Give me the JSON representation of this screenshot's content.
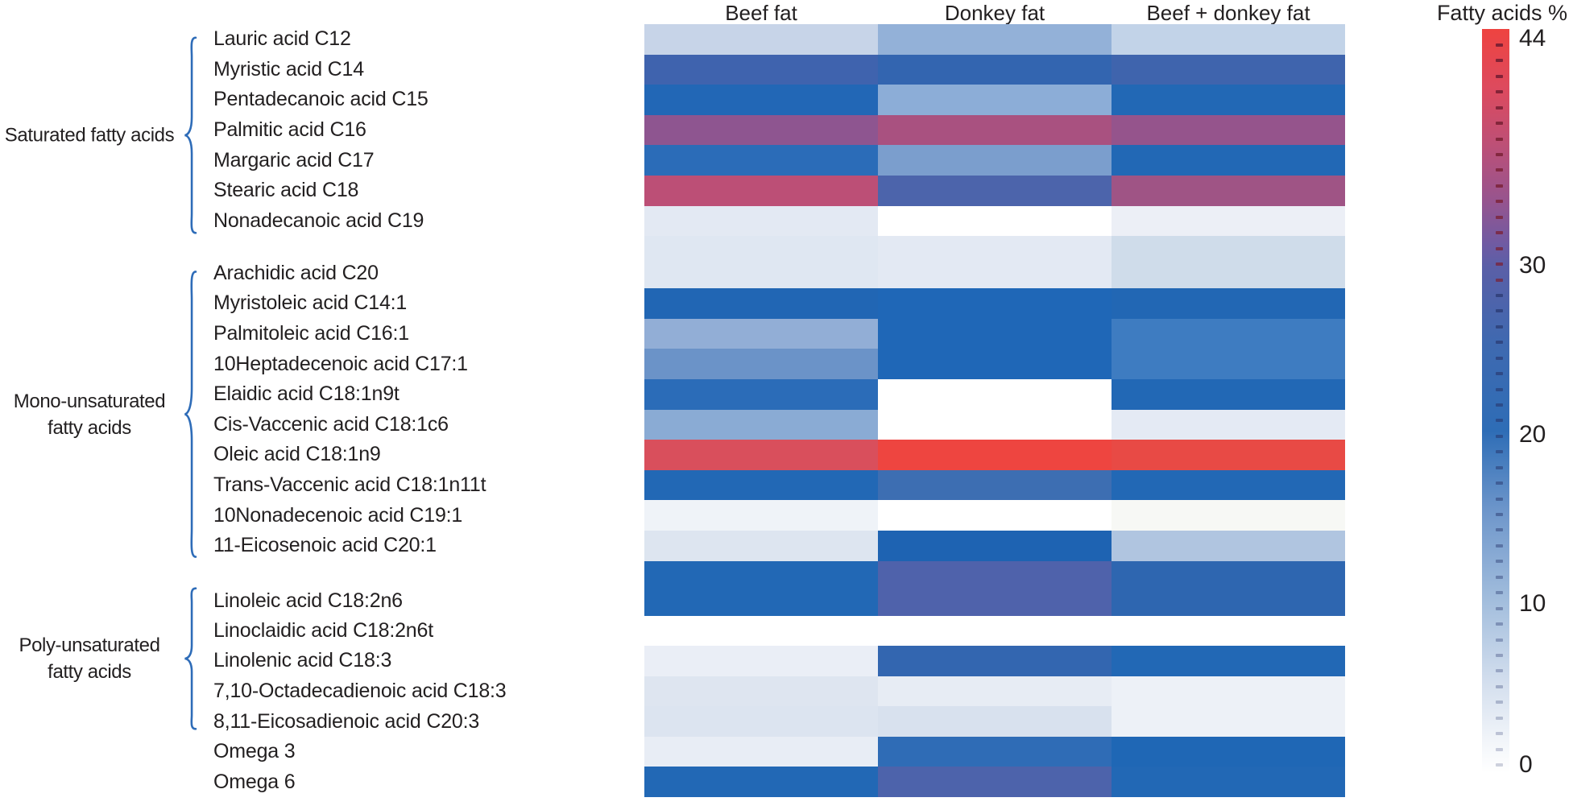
{
  "columns": [
    "Beef fat",
    "Donkey fat",
    "Beef + donkey fat"
  ],
  "colorbar": {
    "title": "Fatty acids %",
    "ticks": [
      "44",
      "30",
      "20",
      "10",
      "0"
    ],
    "tick_values": [
      44,
      30,
      20,
      10,
      0
    ],
    "min": 0,
    "max": 44,
    "top_color": "#ee4340",
    "mid_color": "#2e6db6",
    "bottom_color": "#ffffff"
  },
  "groups": [
    {
      "id": "saturated",
      "lines": [
        "Saturated fatty acids"
      ]
    },
    {
      "id": "mono",
      "lines": [
        "Mono-unsaturated",
        "fatty acids"
      ]
    },
    {
      "id": "poly",
      "lines": [
        "Poly-unsaturated",
        "fatty acids"
      ]
    }
  ],
  "rows": [
    {
      "label": "Lauric acid C12",
      "group": "saturated",
      "colors": [
        "#c7d4e8",
        "#93b1d8",
        "#c2d3e8"
      ],
      "values": [
        6,
        12,
        6
      ]
    },
    {
      "label": "Myristic acid C14",
      "group": "saturated",
      "colors": [
        "#3f63ae",
        "#3365b0",
        "#3f64ad"
      ],
      "values": [
        27,
        25,
        26
      ]
    },
    {
      "label": "Pentadecanoic acid C15",
      "group": "saturated",
      "colors": [
        "#2267b6",
        "#8cadd7",
        "#2268b5"
      ],
      "values": [
        21,
        13,
        21
      ]
    },
    {
      "label": "Palmitic acid C16",
      "group": "saturated",
      "colors": [
        "#8e5590",
        "#a95180",
        "#95548c"
      ],
      "values": [
        36,
        39,
        37
      ]
    },
    {
      "label": "Margaric acid C17",
      "group": "saturated",
      "colors": [
        "#2b6cb8",
        "#7b9ecd",
        "#2268b5"
      ],
      "values": [
        21,
        14,
        21
      ]
    },
    {
      "label": "Stearic acid C18",
      "group": "saturated",
      "colors": [
        "#bc4f76",
        "#4c64ab",
        "#9f5485"
      ],
      "values": [
        40,
        29,
        38
      ]
    },
    {
      "label": "Nonadecanoic acid C19",
      "group": "saturated",
      "colors": [
        "#e3e9f3",
        "#ffffff",
        "#eceff6"
      ],
      "values": [
        2,
        0,
        1
      ]
    },
    {
      "label": "Arachidic acid C20",
      "group": "mono",
      "colors": [
        "#dfe7f2",
        "#e3e9f3",
        "#cfdcea"
      ],
      "values": [
        2,
        2,
        5
      ]
    },
    {
      "label": "Myristoleic acid C14:1",
      "group": "mono",
      "colors": [
        "#2166b4",
        "#1f67b7",
        "#2267b4"
      ],
      "values": [
        22,
        22,
        22
      ]
    },
    {
      "label": "Palmitoleic acid C16:1",
      "group": "mono",
      "colors": [
        "#92aed6",
        "#1f67b7",
        "#3e7cc1"
      ],
      "values": [
        12,
        22,
        19
      ]
    },
    {
      "label": "10Heptadecenoic acid C17:1",
      "group": "mono",
      "colors": [
        "#6b93c8",
        "#1f67b7",
        "#3e7cc1"
      ],
      "values": [
        16,
        22,
        19
      ]
    },
    {
      "label": "Elaidic acid C18:1n9t",
      "group": "mono",
      "colors": [
        "#2b6cb8",
        "#ffffff",
        "#2268b5"
      ],
      "values": [
        21,
        0,
        21
      ]
    },
    {
      "label": "Cis-Vaccenic acid C18:1c6",
      "group": "mono",
      "colors": [
        "#8aabd4",
        "#ffffff",
        "#e4eaf4"
      ],
      "values": [
        13,
        0,
        2
      ]
    },
    {
      "label": "Oleic acid C18:1n9",
      "group": "mono",
      "colors": [
        "#d94f5c",
        "#ee4540",
        "#e84a45"
      ],
      "values": [
        42,
        44,
        43
      ]
    },
    {
      "label": "Trans-Vaccenic acid C18:1n11t",
      "group": "mono",
      "colors": [
        "#2268b5",
        "#3d6eb2",
        "#2268b5"
      ],
      "values": [
        21,
        24,
        21
      ]
    },
    {
      "label": "10Nonadecenoic acid C19:1",
      "group": "mono",
      "colors": [
        "#eff3f8",
        "#ffffff",
        "#f7f8f5"
      ],
      "values": [
        1,
        0,
        0
      ]
    },
    {
      "label": "11-Eicosenoic acid C20:1",
      "group": "mono",
      "colors": [
        "#dde5f0",
        "#1e63b2",
        "#b0c5e0"
      ],
      "values": [
        3,
        22,
        9
      ]
    },
    {
      "label": "Linoleic acid C18:2n6",
      "group": "poly",
      "colors": [
        "#2268b5",
        "#4f62ab",
        "#2e66b0"
      ],
      "values": [
        21,
        29,
        24
      ]
    },
    {
      "label": "Linoclaidic acid C18:2n6t",
      "group": "poly",
      "colors": [
        "#ffffff",
        "#ffffff",
        "#ffffff"
      ],
      "values": [
        0,
        0,
        0
      ]
    },
    {
      "label": "Linolenic acid C18:3",
      "group": "poly",
      "colors": [
        "#eaeef6",
        "#3366b0",
        "#2268b5"
      ],
      "values": [
        1,
        25,
        22
      ]
    },
    {
      "label": "7,10-Octadecadienoic acid C18:3",
      "group": "poly",
      "colors": [
        "#dee5f0",
        "#e7ecf4",
        "#edf1f7"
      ],
      "values": [
        3,
        2,
        1
      ]
    },
    {
      "label": "8,11-Eicosadienoic acid C20:3",
      "group": "poly",
      "colors": [
        "#dce4f0",
        "#d8e1ee",
        "#edf1f7"
      ],
      "values": [
        3,
        4,
        1
      ]
    },
    {
      "label": "Omega 3",
      "group": "",
      "colors": [
        "#e8edf5",
        "#2f6cb6",
        "#1f67b5"
      ],
      "values": [
        2,
        23,
        22
      ]
    },
    {
      "label": "Omega 6",
      "group": "",
      "colors": [
        "#2268b5",
        "#4d63ab",
        "#2268b5"
      ],
      "values": [
        21,
        29,
        22
      ]
    }
  ],
  "brace_color": "#2e6cb8",
  "chart_data": {
    "type": "heatmap",
    "columns": [
      "Beef fat",
      "Donkey fat",
      "Beef + donkey fat"
    ],
    "rows": [
      "Lauric acid C12",
      "Myristic acid C14",
      "Pentadecanoic acid C15",
      "Palmitic acid C16",
      "Margaric acid C17",
      "Stearic acid C18",
      "Nonadecanoic acid C19",
      "Arachidic acid C20",
      "Myristoleic acid C14:1",
      "Palmitoleic acid C16:1",
      "10Heptadecenoic acid C17:1",
      "Elaidic acid C18:1n9t",
      "Cis-Vaccenic acid C18:1c6",
      "Oleic acid C18:1n9",
      "Trans-Vaccenic acid C18:1n11t",
      "10Nonadecenoic acid C19:1",
      "11-Eicosenoic acid C20:1",
      "Linoleic acid C18:2n6",
      "Linoclaidic acid C18:2n6t",
      "Linolenic acid C18:3",
      "7,10-Octadecadienoic acid C18:3",
      "8,11-Eicosadienoic acid C20:3",
      "Omega 3",
      "Omega 6"
    ],
    "row_groups": [
      {
        "group": "Saturated fatty acids",
        "row_indices": [
          0,
          6
        ]
      },
      {
        "group": "Mono-unsaturated fatty acids",
        "row_indices": [
          7,
          16
        ]
      },
      {
        "group": "Poly-unsaturated fatty acids",
        "row_indices": [
          17,
          21
        ]
      },
      {
        "group": "",
        "row_indices": [
          22,
          23
        ]
      }
    ],
    "values_estimated_percent": [
      [
        6,
        12,
        6
      ],
      [
        27,
        25,
        26
      ],
      [
        21,
        13,
        21
      ],
      [
        36,
        39,
        37
      ],
      [
        21,
        14,
        21
      ],
      [
        40,
        29,
        38
      ],
      [
        2,
        0,
        1
      ],
      [
        2,
        2,
        5
      ],
      [
        22,
        22,
        22
      ],
      [
        12,
        22,
        19
      ],
      [
        16,
        22,
        19
      ],
      [
        21,
        0,
        21
      ],
      [
        13,
        0,
        2
      ],
      [
        42,
        44,
        43
      ],
      [
        21,
        24,
        21
      ],
      [
        1,
        0,
        0
      ],
      [
        3,
        22,
        9
      ],
      [
        21,
        29,
        24
      ],
      [
        0,
        0,
        0
      ],
      [
        1,
        25,
        22
      ],
      [
        3,
        2,
        1
      ],
      [
        3,
        4,
        1
      ],
      [
        2,
        23,
        22
      ],
      [
        21,
        29,
        22
      ]
    ],
    "colorbar": {
      "label": "Fatty acids %",
      "min": 0,
      "max": 44,
      "ticks": [
        44,
        30,
        20,
        10,
        0
      ],
      "position": "right"
    },
    "colormap": "sequential white -> light blue -> blue -> slate indigo -> purple -> red",
    "grid": false,
    "legend_position": "right"
  }
}
